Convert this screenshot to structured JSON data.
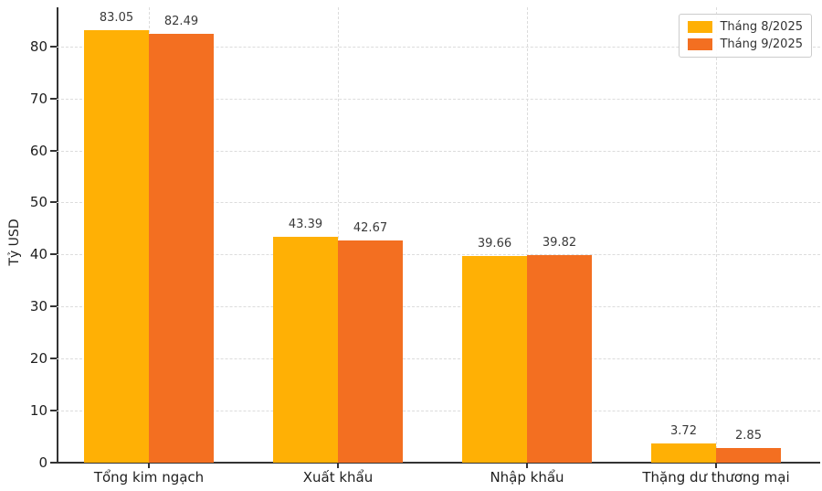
{
  "chart_data": {
    "type": "bar",
    "title": "",
    "xlabel": "",
    "ylabel": "Tỷ USD",
    "categories": [
      "Tổng kim ngạch",
      "Xuất khẩu",
      "Nhập khẩu",
      "Thặng dư thương mại"
    ],
    "series": [
      {
        "name": "Tháng 8/2025",
        "color": "#FFB005",
        "values": [
          83.05,
          43.39,
          39.66,
          3.72
        ]
      },
      {
        "name": "Tháng 9/2025",
        "color": "#F36F21",
        "values": [
          82.49,
          42.67,
          39.82,
          2.85
        ]
      }
    ],
    "yticks": [
      0,
      10,
      20,
      30,
      40,
      50,
      60,
      70,
      80
    ],
    "ylim": [
      0,
      87.5
    ],
    "grid": "dashed, horizontal and vertical at category centers",
    "legend_position": "upper right",
    "value_labels": "two decimals above each bar"
  }
}
